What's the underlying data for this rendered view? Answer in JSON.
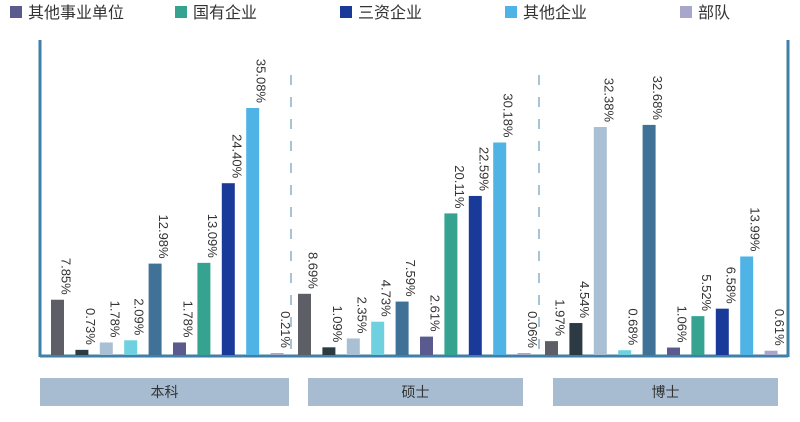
{
  "chart_data": {
    "type": "bar",
    "legend": [
      {
        "name": "其他事业单位",
        "color": "#5b5a8e"
      },
      {
        "name": "国有企业",
        "color": "#36a391"
      },
      {
        "name": "三资企业",
        "color": "#1a3a9a"
      },
      {
        "name": "其他企业",
        "color": "#4fb3e6"
      },
      {
        "name": "部队",
        "color": "#a9a6cb"
      }
    ],
    "groups": [
      {
        "label": "本科",
        "bars": [
          {
            "label": "7.85%",
            "value": 7.85,
            "color": "#5e5e66"
          },
          {
            "label": "0.73%",
            "value": 0.73,
            "color": "#2c3a44"
          },
          {
            "label": "1.78%",
            "value": 1.78,
            "color": "#a9bfd3"
          },
          {
            "label": "2.09%",
            "value": 2.09,
            "color": "#6fd0e0"
          },
          {
            "label": "12.98%",
            "value": 12.98,
            "color": "#3f7296"
          },
          {
            "label": "1.78%",
            "value": 1.78,
            "color": "#5b5a8e"
          },
          {
            "label": "13.09%",
            "value": 13.09,
            "color": "#36a391"
          },
          {
            "label": "24.40%",
            "value": 24.4,
            "color": "#1a3a9a"
          },
          {
            "label": "35.08%",
            "value": 35.08,
            "color": "#4fb3e6"
          },
          {
            "label": "0.21%",
            "value": 0.21,
            "color": "#a9a6cb"
          }
        ]
      },
      {
        "label": "硕士",
        "bars": [
          {
            "label": "8.69%",
            "value": 8.69,
            "color": "#5e5e66"
          },
          {
            "label": "1.09%",
            "value": 1.09,
            "color": "#2c3a44"
          },
          {
            "label": "2.35%",
            "value": 2.35,
            "color": "#a9bfd3"
          },
          {
            "label": "4.73%",
            "value": 4.73,
            "color": "#6fd0e0"
          },
          {
            "label": "7.59%",
            "value": 7.59,
            "color": "#3f7296"
          },
          {
            "label": "2.61%",
            "value": 2.61,
            "color": "#5b5a8e"
          },
          {
            "label": "20.11%",
            "value": 20.11,
            "color": "#36a391"
          },
          {
            "label": "22.59%",
            "value": 22.59,
            "color": "#1a3a9a"
          },
          {
            "label": "30.18%",
            "value": 30.18,
            "color": "#4fb3e6"
          },
          {
            "label": "0.06%",
            "value": 0.06,
            "color": "#a9a6cb"
          }
        ]
      },
      {
        "label": "博士",
        "bars": [
          {
            "label": "1.97%",
            "value": 1.97,
            "color": "#5e5e66"
          },
          {
            "label": "4.54%",
            "value": 4.54,
            "color": "#2c3a44"
          },
          {
            "label": "32.38%",
            "value": 32.38,
            "color": "#a9bfd3"
          },
          {
            "label": "0.68%",
            "value": 0.68,
            "color": "#6fd0e0"
          },
          {
            "label": "32.68%",
            "value": 32.68,
            "color": "#3f7296"
          },
          {
            "label": "1.06%",
            "value": 1.06,
            "color": "#5b5a8e"
          },
          {
            "label": "5.52%",
            "value": 5.52,
            "color": "#36a391"
          },
          {
            "label": "6.58%",
            "value": 6.58,
            "color": "#1a3a9a"
          },
          {
            "label": "13.99%",
            "value": 13.99,
            "color": "#4fb3e6"
          },
          {
            "label": "0.61%",
            "value": 0.61,
            "color": "#a9a6cb"
          }
        ]
      }
    ],
    "ylim": [
      0,
      35.08
    ],
    "grid": false,
    "legend_placement": "top",
    "colors": {
      "axis": "#3f7fa8",
      "group_box": "#a7bcd0",
      "separator": "#8ab0c8"
    }
  }
}
